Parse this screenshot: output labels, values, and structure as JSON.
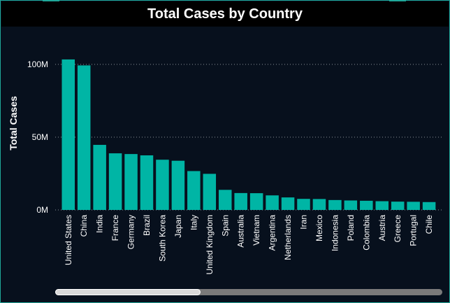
{
  "title": "Total Cases by Country",
  "colors": {
    "background": "#07101d",
    "bar": "#00b5a5",
    "text": "#ffffff",
    "grid": "#8a8f96",
    "accent": "#1fa89a"
  },
  "chart_data": {
    "type": "bar",
    "title": "Total Cases by Country",
    "xlabel": "",
    "ylabel": "Total Cases",
    "ylim": [
      0,
      100000000
    ],
    "yticks": [
      0,
      50000000,
      100000000
    ],
    "ytick_labels": [
      "0M",
      "50M",
      "100M"
    ],
    "grid": "horizontal dotted",
    "categories": [
      "United States",
      "China",
      "India",
      "France",
      "Germany",
      "Brazil",
      "South Korea",
      "Japan",
      "Italy",
      "United Kingdom",
      "Spain",
      "Australia",
      "Vietnam",
      "Argentina",
      "Netherlands",
      "Iran",
      "Mexico",
      "Indonesia",
      "Poland",
      "Colombia",
      "Austria",
      "Greece",
      "Portugal",
      "Chile"
    ],
    "values": [
      103400000,
      99300000,
      44700000,
      38900000,
      38400000,
      37500000,
      34500000,
      33800000,
      26700000,
      24800000,
      13800000,
      11600000,
      11500000,
      10000000,
      8600000,
      7600000,
      7500000,
      6800000,
      6500000,
      6300000,
      6000000,
      5700000,
      5600000,
      5400000
    ]
  },
  "scrollbar": {
    "position": 0,
    "visible_fraction": 0.375
  }
}
